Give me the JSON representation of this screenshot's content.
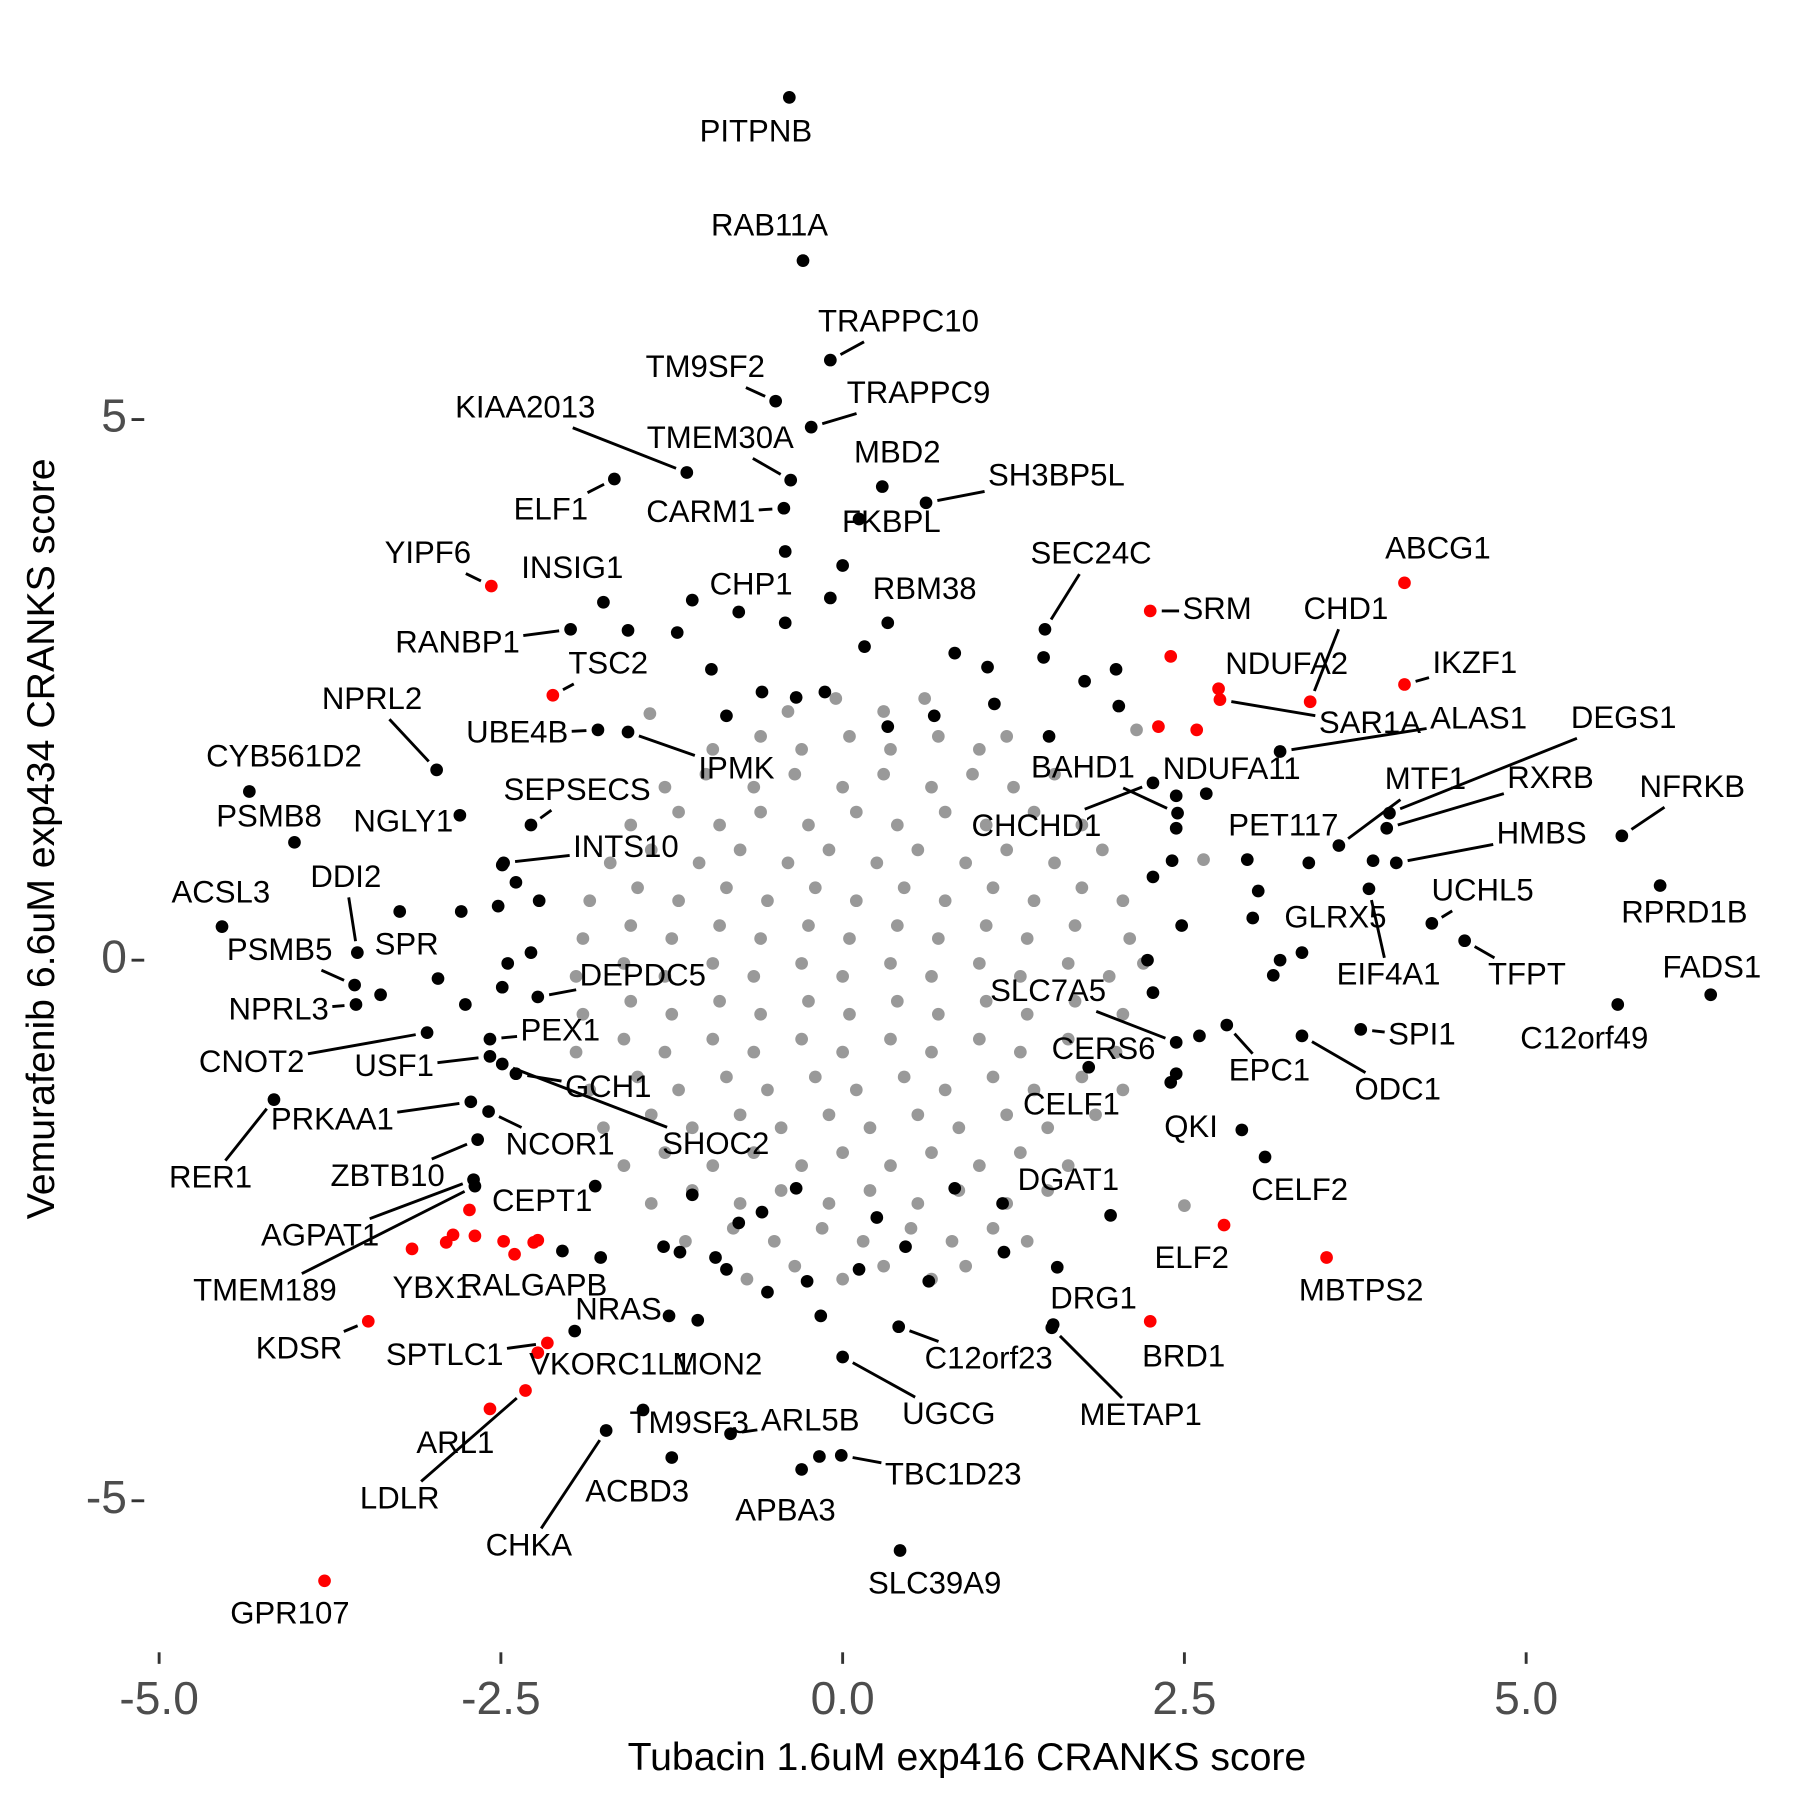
{
  "chart_data": {
    "type": "scatter",
    "xlabel": "Tubacin 1.6uM exp416 CRANKS score",
    "ylabel": "Vemurafenib 6.6uM exp434 CRANKS score",
    "xlim": [
      -5.32,
      6.75
    ],
    "ylim": [
      -6.38,
      8.24
    ],
    "xticks": [
      {
        "value": -5,
        "label": "-5.0"
      },
      {
        "value": -2.5,
        "label": "-2.5"
      },
      {
        "value": 0,
        "label": "0.0"
      },
      {
        "value": 2.5,
        "label": "2.5"
      },
      {
        "value": 5,
        "label": "5.0"
      }
    ],
    "yticks": [
      -5,
      0,
      5
    ],
    "groups": [
      {
        "color": "#999999",
        "x": [
          -0.4,
          -0.05,
          0.3,
          0.6,
          -0.95,
          -0.6,
          -0.3,
          0.05,
          0.35,
          0.7,
          1.0,
          1.2,
          -1.3,
          -1.0,
          -0.65,
          -0.35,
          0,
          0.3,
          0.65,
          0.95,
          1.25,
          1.55,
          -1.55,
          -1.2,
          -0.9,
          -0.6,
          -0.25,
          0.1,
          0.4,
          0.75,
          1.05,
          1.4,
          1.75,
          -1.7,
          -1.4,
          -1.05,
          -0.75,
          -0.4,
          -0.1,
          0.25,
          0.55,
          0.9,
          1.2,
          1.55,
          1.9,
          -1.85,
          -1.5,
          -1.2,
          -0.85,
          -0.55,
          -0.2,
          0.1,
          0.45,
          0.75,
          1.1,
          1.4,
          1.75,
          2.05,
          -1.9,
          -1.55,
          -1.25,
          -0.9,
          -0.6,
          -0.25,
          0.05,
          0.4,
          0.7,
          1.05,
          1.35,
          1.7,
          2.1,
          -1.95,
          -1.6,
          -1.3,
          -0.95,
          -0.65,
          -0.3,
          0,
          0.35,
          0.65,
          1.0,
          1.3,
          1.65,
          1.95,
          2.2,
          -1.9,
          -1.55,
          -1.25,
          -0.9,
          -0.6,
          -0.25,
          0.05,
          0.4,
          0.7,
          1.05,
          1.35,
          1.7,
          2.05,
          -1.95,
          -1.6,
          -1.3,
          -0.95,
          -0.65,
          -0.3,
          0,
          0.35,
          0.65,
          1.0,
          1.3,
          1.65,
          2.0,
          -1.85,
          -1.5,
          -1.2,
          -0.85,
          -0.55,
          -0.2,
          0.1,
          0.45,
          0.75,
          1.1,
          1.4,
          1.75,
          2.05,
          -1.75,
          -1.4,
          -1.1,
          -0.75,
          -0.45,
          -0.1,
          0.2,
          0.55,
          0.85,
          1.2,
          1.5,
          1.85,
          -1.6,
          -1.3,
          -0.95,
          -0.65,
          -0.3,
          0,
          0.35,
          0.65,
          1.0,
          1.3,
          1.65,
          -1.4,
          -1.1,
          -0.75,
          -0.45,
          -0.1,
          0.2,
          0.55,
          0.85,
          1.2,
          1.5,
          -1.15,
          -0.8,
          -0.5,
          -0.15,
          0.15,
          0.5,
          0.8,
          1.1,
          1.35,
          -0.7,
          -0.35,
          0,
          0.3,
          0.65,
          0.9,
          2.5,
          2.64,
          2.15,
          -1.41
        ],
        "y": [
          2.3,
          2.42,
          2.3,
          2.42,
          1.95,
          2.07,
          1.95,
          2.07,
          1.95,
          2.07,
          1.95,
          2.07,
          1.6,
          1.72,
          1.6,
          1.72,
          1.6,
          1.72,
          1.6,
          1.72,
          1.6,
          1.72,
          1.25,
          1.37,
          1.25,
          1.37,
          1.25,
          1.37,
          1.25,
          1.37,
          1.25,
          1.37,
          1.25,
          0.9,
          1.02,
          0.9,
          1.02,
          0.9,
          1.02,
          0.9,
          1.02,
          0.9,
          1.02,
          0.9,
          1.02,
          0.55,
          0.67,
          0.55,
          0.67,
          0.55,
          0.67,
          0.55,
          0.67,
          0.55,
          0.67,
          0.55,
          0.67,
          0.55,
          0.2,
          0.32,
          0.2,
          0.32,
          0.2,
          0.32,
          0.2,
          0.32,
          0.2,
          0.32,
          0.2,
          0.32,
          0.2,
          -0.15,
          -0.03,
          -0.15,
          -0.03,
          -0.15,
          -0.03,
          -0.15,
          -0.03,
          -0.15,
          -0.03,
          -0.15,
          -0.03,
          -0.15,
          -0.03,
          -0.5,
          -0.38,
          -0.5,
          -0.38,
          -0.5,
          -0.38,
          -0.5,
          -0.38,
          -0.5,
          -0.38,
          -0.5,
          -0.38,
          -0.5,
          -0.85,
          -0.73,
          -0.85,
          -0.73,
          -0.85,
          -0.73,
          -0.85,
          -0.73,
          -0.85,
          -0.73,
          -0.85,
          -0.73,
          -0.85,
          -1.2,
          -1.08,
          -1.2,
          -1.08,
          -1.2,
          -1.08,
          -1.2,
          -1.08,
          -1.2,
          -1.08,
          -1.2,
          -1.08,
          -1.2,
          -1.55,
          -1.43,
          -1.55,
          -1.43,
          -1.55,
          -1.43,
          -1.55,
          -1.43,
          -1.55,
          -1.43,
          -1.55,
          -1.43,
          -1.9,
          -1.78,
          -1.9,
          -1.78,
          -1.9,
          -1.78,
          -1.9,
          -1.78,
          -1.9,
          -1.78,
          -1.9,
          -2.25,
          -2.13,
          -2.25,
          -2.13,
          -2.25,
          -2.13,
          -2.25,
          -2.13,
          -2.25,
          -2.13,
          -2.6,
          -2.48,
          -2.6,
          -2.48,
          -2.6,
          -2.48,
          -2.6,
          -2.48,
          -2.6,
          -2.95,
          -2.83,
          -2.95,
          -2.83,
          -2.95,
          -2.83,
          -2.27,
          0.93,
          2.13,
          2.28
        ]
      },
      {
        "color": "#000000",
        "x": [
          -1.57,
          -1.21,
          -0.76,
          -0.42,
          -0.09,
          0,
          -0.42,
          0.16,
          0.82,
          1.06,
          1.47,
          1.77,
          2.0,
          2.02,
          1.51,
          -0.59,
          -0.85,
          -0.96,
          -0.34,
          -0.13,
          0.33,
          0.67,
          1.11,
          -2.49,
          -2.39,
          -2.52,
          -2.22,
          -2.79,
          -2.45,
          -2.28,
          -2.49,
          -2.96,
          -2.76,
          -3.38,
          2.44,
          2.44,
          2.41,
          2.27,
          2.96,
          3.04,
          3.0,
          2.48,
          3.2,
          3.15,
          2.23,
          2.27,
          2.61,
          3.88,
          2.4,
          -1.1,
          -0.93,
          -0.76,
          -0.59,
          -0.34,
          -0.26,
          -0.16,
          0.12,
          0.25,
          0.46,
          0.63,
          0.82,
          1.18,
          1.57,
          1.96,
          -1.31,
          -1.77,
          -2.05,
          -1.81,
          -0.17,
          -1.19,
          -0.85,
          -0.55,
          -1.27
        ],
        "y": [
          3.05,
          3.03,
          3.22,
          3.12,
          3.35,
          3.65,
          3.78,
          2.9,
          2.84,
          2.71,
          2.8,
          2.58,
          2.69,
          2.35,
          2.07,
          2.48,
          2.26,
          2.69,
          2.43,
          2.48,
          2.16,
          2.26,
          2.37,
          0.88,
          0.72,
          0.5,
          0.55,
          0.45,
          -0.03,
          0.07,
          -0.25,
          -0.17,
          -0.41,
          -0.32,
          1.52,
          1.22,
          0.92,
          0.77,
          0.93,
          0.64,
          0.39,
          0.32,
          0.0,
          -0.14,
          0.0,
          -0.3,
          -0.7,
          0.92,
          -1.13,
          -2.17,
          -2.75,
          -2.43,
          -2.33,
          -2.11,
          -2.97,
          -3.29,
          -2.86,
          -2.38,
          -2.65,
          -2.97,
          -2.11,
          -2.7,
          -2.84,
          -2.36,
          -2.65,
          -2.75,
          -2.69,
          -2.09,
          -4.59,
          -2.7,
          -2.86,
          -3.07,
          -3.29
        ]
      },
      {
        "color": "#ff0000",
        "x": [
          2.4,
          2.31,
          2.59,
          -3.15,
          -2.85,
          -2.69,
          -2.48,
          -2.4,
          -2.23
        ],
        "y": [
          2.81,
          2.16,
          2.13,
          -2.67,
          -2.54,
          -2.55,
          -2.6,
          -2.72,
          -2.59
        ]
      },
      {
        "color": "#000000",
        "x": [
          -0.39,
          -0.29,
          -0.09,
          -0.49,
          -0.23,
          -1.14,
          -0.38,
          0.29,
          0.61,
          -1.67,
          -0.43,
          0.12,
          -1.75,
          -1.1,
          1.48,
          0.33,
          -1.99,
          -2.97,
          -1.79,
          -1.57,
          3.2,
          4.0,
          3.98,
          3.63,
          3.41,
          4.05,
          5.7,
          2.66,
          2.45,
          2.27,
          -2.28,
          -2.8,
          -4.34,
          -4.01,
          -2.48,
          -3.55,
          -3.57,
          -3.24,
          -4.54,
          -3.56,
          4.31,
          5.98,
          3.36,
          3.85,
          4.55,
          6.35,
          5.67,
          3.79,
          -2.23,
          -2.58,
          2.44,
          2.44,
          2.81,
          3.36,
          -3.04,
          -2.58,
          -2.39,
          -2.49,
          -2.72,
          -4.16,
          1.8,
          2.92,
          -2.59,
          -2.67,
          3.09,
          1.17,
          -2.7,
          -2.69,
          -1.96,
          1.54,
          -1.06,
          0.41,
          0.0,
          1.53,
          -1.46,
          -0.82,
          -1.25,
          -0.01,
          -0.3,
          -1.73,
          0.42
        ],
        "y": [
          7.98,
          6.47,
          5.55,
          5.17,
          4.93,
          4.51,
          4.44,
          4.38,
          4.23,
          4.45,
          4.18,
          4.08,
          3.31,
          3.33,
          3.06,
          3.12,
          3.06,
          1.76,
          2.13,
          2.11,
          1.93,
          1.36,
          1.22,
          1.06,
          0.9,
          0.9,
          1.15,
          1.54,
          1.36,
          1.64,
          1.25,
          1.34,
          1.56,
          1.09,
          0.9,
          0.07,
          -0.23,
          0.45,
          0.31,
          -0.41,
          0.34,
          0.69,
          0.07,
          0.66,
          0.18,
          -0.32,
          -0.41,
          -0.64,
          -0.34,
          -0.73,
          -0.76,
          -1.05,
          -0.6,
          -0.7,
          -0.67,
          -0.89,
          -1.05,
          -0.96,
          -1.31,
          -1.29,
          -0.99,
          -1.57,
          -1.4,
          -1.66,
          -1.82,
          -2.25,
          -2.03,
          -2.09,
          -3.43,
          -3.37,
          -3.33,
          -3.39,
          -3.67,
          -3.4,
          -4.16,
          -4.38,
          -4.6,
          -4.58,
          -4.71,
          -4.35,
          -5.46
        ],
        "labels": [
          "PITPNB",
          "RAB11A",
          "TRAPPC10",
          "TM9SF2",
          "TRAPPC9",
          "KIAA2013",
          "TMEM30A",
          "MBD2",
          "SH3BP5L",
          "ELF1",
          "CARM1",
          "FKBPL",
          "INSIG1",
          "CHP1",
          "SEC24C",
          "RBM38",
          "RANBP1",
          "NPRL2",
          "UBE4B",
          "IPMK",
          "ALAS1",
          "DEGS1",
          "RXRB",
          "MTF1",
          "PET117",
          "HMBS",
          "NFRKB",
          "NDUFA11",
          "BAHD1",
          "CHCHD1",
          "SEPSECS",
          "NGLY1",
          "CYB561D2",
          "PSMB8",
          "INTS10",
          "DDI2",
          "PSMB5",
          "SPR",
          "ACSL3",
          "NPRL3",
          "UCHL5",
          "RPRD1B",
          "GLRX5",
          "EIF4A1",
          "TFPT",
          "FADS1",
          "C12orf49",
          "SPI1",
          "DEPDC5",
          "PEX1",
          "SLC7A5",
          "CERS6",
          "EPC1",
          "ODC1",
          "CNOT2",
          "USF1",
          "GCH1",
          "SHOC2",
          "PRKAA1",
          "RER1",
          "CELF1",
          "QKI",
          "NCOR1",
          "ZBTB10",
          "CELF2",
          "DGAT1",
          "AGPAT1",
          "TMEM189",
          "NRAS",
          "DRG1",
          "MON2",
          "C12orf23",
          "UGCG",
          "METAP1",
          "TM9SF3",
          "ARL5B",
          "ACBD3",
          "TBC1D23",
          "APBA3",
          "CHKA",
          "SLC39A9"
        ]
      },
      {
        "color": "#ff0000",
        "x": [
          -2.57,
          4.11,
          2.25,
          2.75,
          2.76,
          3.42,
          4.11,
          -2.12,
          -2.73,
          -2.9,
          -2.26,
          2.79,
          3.54,
          -3.47,
          2.25,
          -2.16,
          -2.23,
          -2.58,
          -2.32,
          -3.79
        ],
        "y": [
          3.46,
          3.49,
          3.23,
          2.51,
          2.41,
          2.39,
          2.55,
          2.45,
          -2.31,
          -2.61,
          -2.61,
          -2.45,
          -2.75,
          -3.34,
          -3.34,
          -3.54,
          -3.63,
          -4.15,
          -3.98,
          -5.74
        ],
        "labels": [
          "YIPF6",
          "ABCG1",
          "SRM",
          "NDUFA2",
          "SAR1A",
          "CHD1",
          "IKZF1",
          "TSC2",
          "CEPT1",
          "YBX1",
          "RALGAPB",
          "ELF2",
          "MBTPS2",
          "KDSR",
          "BRD1",
          "SPTLC1",
          "VKORC1L1",
          "ARL1",
          "LDLR",
          "GPR107"
        ]
      }
    ]
  }
}
